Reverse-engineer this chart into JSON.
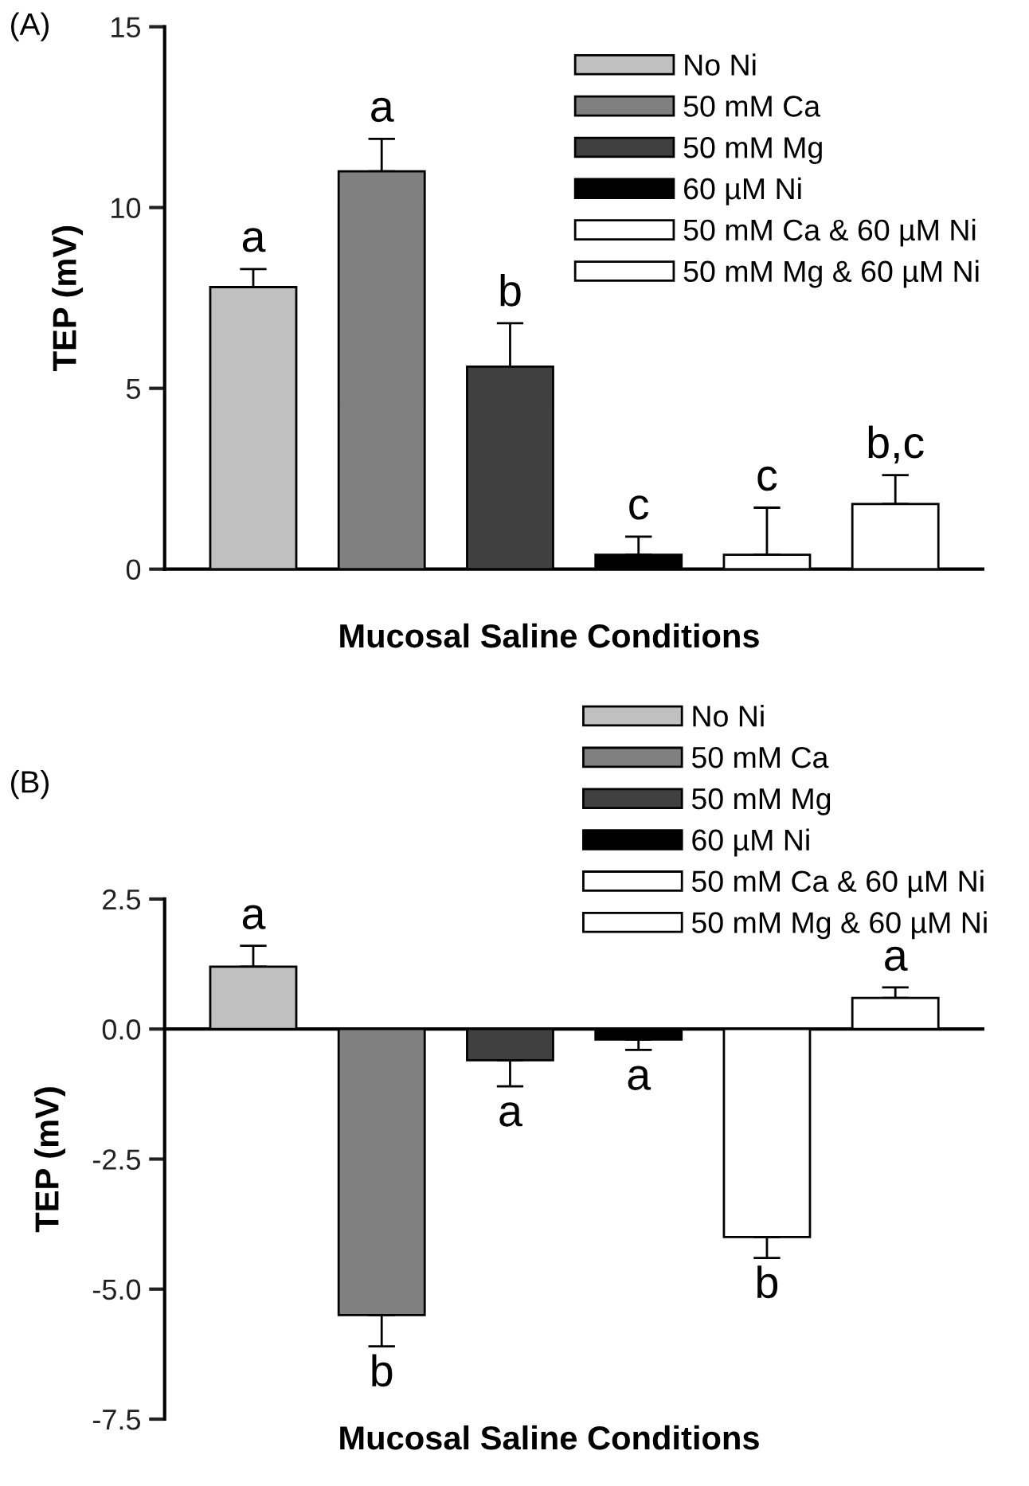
{
  "chart_data": [
    {
      "type": "bar",
      "title": "(A)",
      "xlabel": "Mucosal Saline Conditions",
      "ylabel": "TEP (mV)",
      "categories": [
        null,
        null,
        null,
        null,
        null,
        null
      ],
      "series": [
        {
          "name": "No Ni",
          "color": "#c0c0c0",
          "values": [
            7.8,
            null,
            null,
            null,
            null,
            null
          ],
          "errors": [
            [
              7.8,
              8.3
            ],
            null,
            null,
            null,
            null,
            null
          ],
          "value_labels": [
            "a",
            null,
            null,
            null,
            null,
            null
          ]
        },
        {
          "name": "50 mM Ca",
          "color": "#808080",
          "values": [
            null,
            11.0,
            null,
            null,
            null,
            null
          ],
          "errors": [
            null,
            [
              11.0,
              11.9
            ],
            null,
            null,
            null,
            null
          ],
          "value_labels": [
            null,
            "a",
            null,
            null,
            null,
            null
          ]
        },
        {
          "name": "50 mM Mg",
          "color": "#404040",
          "values": [
            null,
            null,
            5.6,
            null,
            null,
            null
          ],
          "errors": [
            null,
            null,
            [
              5.6,
              6.8
            ],
            null,
            null,
            null
          ],
          "value_labels": [
            null,
            null,
            "b",
            null,
            null,
            null
          ]
        },
        {
          "name": "60 µM Ni",
          "color": "#000000",
          "values": [
            null,
            null,
            null,
            0.4,
            null,
            null
          ],
          "errors": [
            null,
            null,
            null,
            [
              0.4,
              0.9
            ],
            null,
            null
          ],
          "value_labels": [
            null,
            null,
            null,
            "c",
            null,
            null
          ]
        },
        {
          "name": "50 mM Ca & 60 µM Ni",
          "color": "#ffffff",
          "values": [
            null,
            null,
            null,
            null,
            0.4,
            null
          ],
          "errors": [
            null,
            null,
            null,
            null,
            [
              0.4,
              1.7
            ],
            null
          ],
          "value_labels": [
            null,
            null,
            null,
            null,
            "c",
            null
          ]
        },
        {
          "name": "50 mM Mg & 60 µM Ni",
          "color": "#ffffff",
          "values": [
            null,
            null,
            null,
            null,
            null,
            1.8
          ],
          "errors": [
            null,
            null,
            null,
            null,
            null,
            [
              1.8,
              2.6
            ]
          ],
          "value_labels": [
            null,
            null,
            null,
            null,
            null,
            "b,c"
          ]
        }
      ],
      "ylim": [
        0,
        15
      ],
      "yticks": [
        0,
        5,
        10,
        15
      ],
      "tick_labels": "y",
      "legend": "top right"
    },
    {
      "type": "bar",
      "title": "(B)",
      "xlabel": "Mucosal Saline Conditions",
      "ylabel": "TEP (mV)",
      "categories": [
        null,
        null,
        null,
        null,
        null,
        null
      ],
      "series": [
        {
          "name": "No Ni",
          "color": "#c0c0c0",
          "values": [
            1.2,
            null,
            null,
            null,
            null,
            null
          ],
          "errors": [
            [
              1.2,
              1.6
            ],
            null,
            null,
            null,
            null,
            null
          ],
          "value_labels": [
            "a",
            null,
            null,
            null,
            null,
            null
          ]
        },
        {
          "name": "50 mM Ca",
          "color": "#808080",
          "values": [
            null,
            -5.5,
            null,
            null,
            null,
            null
          ],
          "errors": [
            null,
            [
              -6.1,
              -5.5
            ],
            null,
            null,
            null,
            null
          ],
          "value_labels": [
            null,
            "b",
            null,
            null,
            null,
            null
          ]
        },
        {
          "name": "50 mM Mg",
          "color": "#404040",
          "values": [
            null,
            null,
            -0.6,
            null,
            null,
            null
          ],
          "errors": [
            null,
            null,
            [
              -1.1,
              -0.6
            ],
            null,
            null,
            null
          ],
          "value_labels": [
            null,
            null,
            "a",
            null,
            null,
            null
          ]
        },
        {
          "name": "60 µM Ni",
          "color": "#000000",
          "values": [
            null,
            null,
            null,
            -0.2,
            null,
            null
          ],
          "errors": [
            null,
            null,
            null,
            [
              -0.4,
              -0.2
            ],
            null,
            null
          ],
          "value_labels": [
            null,
            null,
            null,
            "a",
            null,
            null
          ]
        },
        {
          "name": "50 mM Ca & 60 µM Ni",
          "color": "#ffffff",
          "values": [
            null,
            null,
            null,
            null,
            -4.0,
            null
          ],
          "errors": [
            null,
            null,
            null,
            null,
            [
              -4.4,
              -4.0
            ],
            null
          ],
          "value_labels": [
            null,
            null,
            null,
            null,
            "b",
            null
          ]
        },
        {
          "name": "50 mM Mg & 60 µM Ni",
          "color": "#ffffff",
          "values": [
            null,
            null,
            null,
            null,
            null,
            0.6
          ],
          "errors": [
            null,
            null,
            null,
            null,
            null,
            [
              0.6,
              0.8
            ]
          ],
          "value_labels": [
            null,
            null,
            null,
            null,
            null,
            "a"
          ]
        }
      ],
      "ylim": [
        -7.5,
        2.5
      ],
      "yticks": [
        {
          "value": 2.5,
          "label": "2.5"
        },
        {
          "value": 0,
          "label": "0.0"
        },
        {
          "value": -2.5,
          "label": "-2.5"
        },
        {
          "value": -5,
          "label": "-5.0"
        },
        {
          "value": -7.5,
          "label": "-7.5"
        }
      ],
      "tick_labels": "y",
      "legend": "top right"
    }
  ]
}
